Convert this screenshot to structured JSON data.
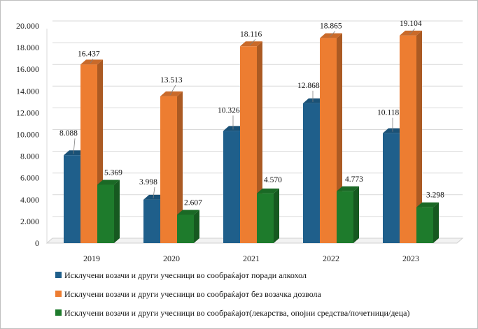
{
  "chart_data": {
    "type": "bar",
    "style": "3d-clustered-column",
    "categories": [
      "2019",
      "2020",
      "2021",
      "2022",
      "2023"
    ],
    "series": [
      {
        "name": "Исклучени возачи и други учесници во сообраќајот поради алкохол",
        "color": "#1f5f8b",
        "values": [
          8088,
          3998,
          10326,
          12868,
          10118
        ],
        "labels": [
          "8.088",
          "3.998",
          "10.326",
          "12.868",
          "10.118"
        ]
      },
      {
        "name": "Исклучени возачи и други учесници во сообраќајот без возачка дозвола",
        "color": "#ed7d31",
        "values": [
          16437,
          13513,
          18116,
          18865,
          19104
        ],
        "labels": [
          "16.437",
          "13.513",
          "18.116",
          "18.865",
          "19.104"
        ]
      },
      {
        "name": "Исклучени возачи и други учесници во сообраќајот(лекарства, опојни средства/почетници/деца)",
        "color": "#1e7b2c",
        "values": [
          5369,
          2607,
          4570,
          4773,
          3298
        ],
        "labels": [
          "5.369",
          "2.607",
          "4.570",
          "4.773",
          "3.298"
        ]
      }
    ],
    "yticks": [
      0,
      2000,
      4000,
      6000,
      8000,
      10000,
      12000,
      14000,
      16000,
      18000,
      20000
    ],
    "ytick_labels": [
      "0",
      "2.000",
      "4.000",
      "6.000",
      "8.000",
      "10.000",
      "12.000",
      "14.000",
      "16.000",
      "18.000",
      "20.000"
    ],
    "ylim": [
      0,
      20000
    ],
    "grid": true,
    "legend_position": "bottom-left"
  }
}
